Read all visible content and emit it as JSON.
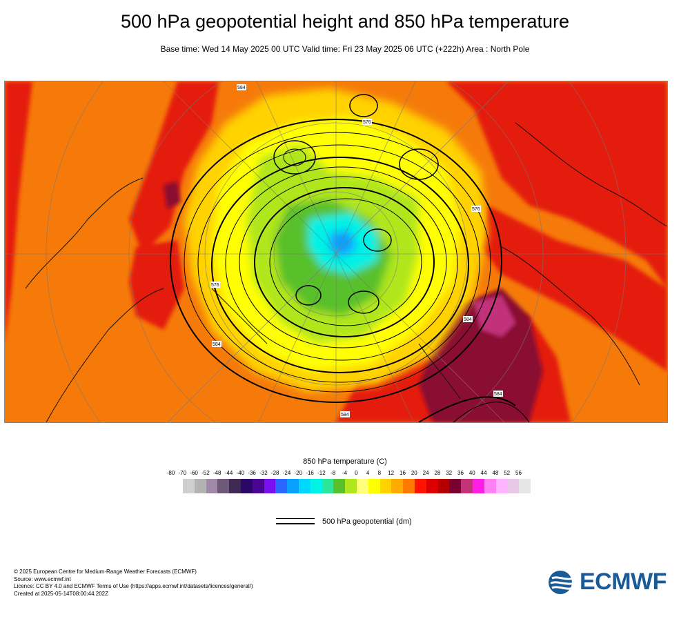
{
  "header": {
    "title": "500 hPa geopotential height and 850 hPa temperature",
    "subtitle": "Base time: Wed 14 May 2025 00 UTC Valid time: Fri 23 May 2025 06 UTC (+222h) Area : North Pole"
  },
  "map": {
    "area": "North Pole",
    "contour_labels": [
      "584",
      "576",
      "584",
      "576",
      "584",
      "576",
      "584",
      "584"
    ]
  },
  "legend": {
    "title": "850 hPa temperature (C)",
    "ticks": [
      "-80",
      "-70",
      "-60",
      "-52",
      "-48",
      "-44",
      "-40",
      "-36",
      "-32",
      "-28",
      "-24",
      "-20",
      "-16",
      "-12",
      "-8",
      "-4",
      "0",
      "4",
      "8",
      "12",
      "16",
      "20",
      "24",
      "28",
      "32",
      "36",
      "40",
      "44",
      "48",
      "52",
      "56"
    ],
    "colors": [
      "#e6e6e6",
      "#cfcfcf",
      "#b3b3b3",
      "#a08aa8",
      "#6e5a78",
      "#3f2a55",
      "#2c0766",
      "#4a0594",
      "#7a0ff0",
      "#2a66ff",
      "#0aa0ff",
      "#00d8ff",
      "#00f2e6",
      "#2ee69a",
      "#58c02a",
      "#b0e61e",
      "#ffff7a",
      "#ffff00",
      "#ffd200",
      "#ffaa00",
      "#ff7800",
      "#ff1400",
      "#dc0000",
      "#b40000",
      "#7a0030",
      "#c2337a",
      "#ff1ee6",
      "#ff82f5",
      "#ffb4ff",
      "#e6c8e6",
      "#e6e6e6"
    ]
  },
  "contour_key": {
    "label": "500 hPa geopotential (dm)"
  },
  "credits": {
    "lines": [
      "© 2025 European Centre for Medium-Range Weather Forecasts (ECMWF)",
      "Source: www.ecmwf.int",
      "Licence: CC BY 4.0 and ECMWF Terms of Use (https://apps.ecmwf.int/datasets/licences/general/)",
      "Created at 2025-05-14T08:00:44.202Z"
    ]
  },
  "logo": {
    "text": "ECMWF"
  }
}
